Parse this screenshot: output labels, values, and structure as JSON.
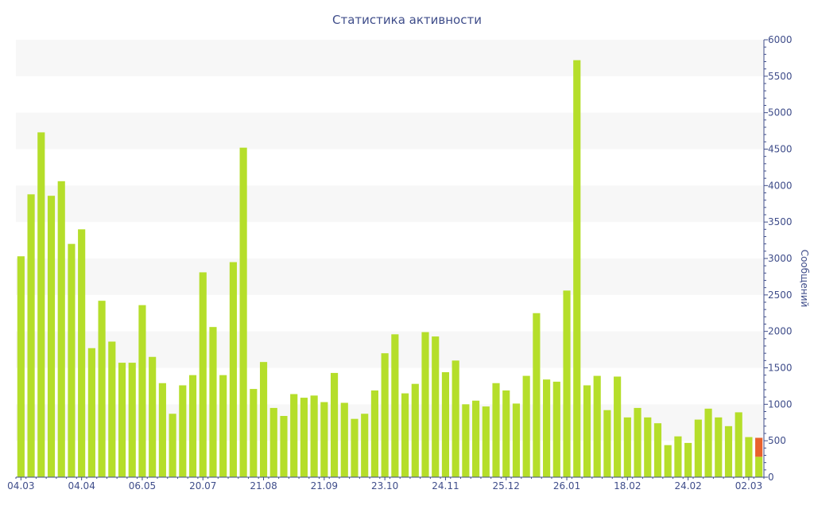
{
  "chart_data": {
    "type": "bar",
    "title": "Статистика активности",
    "ylabel": "Сообщений",
    "xlabel": "",
    "ylim": [
      0,
      6000
    ],
    "y_ticks": [
      0,
      500,
      1000,
      1500,
      2000,
      2500,
      3000,
      3500,
      4000,
      4500,
      5000,
      5500,
      6000
    ],
    "y_axis_position": "right",
    "grid": "alternating horizontal bands",
    "x_tick_labels": [
      {
        "label": "04.03",
        "index": 0
      },
      {
        "label": "04.04",
        "index": 6
      },
      {
        "label": "06.05",
        "index": 12
      },
      {
        "label": "20.07",
        "index": 18
      },
      {
        "label": "21.08",
        "index": 24
      },
      {
        "label": "21.09",
        "index": 30
      },
      {
        "label": "23.10",
        "index": 36
      },
      {
        "label": "24.11",
        "index": 42
      },
      {
        "label": "25.12",
        "index": 48
      },
      {
        "label": "26.01",
        "index": 54
      },
      {
        "label": "18.02",
        "index": 60
      },
      {
        "label": "24.02",
        "index": 66
      },
      {
        "label": "02.03",
        "index": 72
      }
    ],
    "series": [
      {
        "color": "#b5de2a",
        "values": [
          3030,
          3880,
          4730,
          3860,
          4060,
          3200,
          3400,
          1770,
          2420,
          1860,
          1570,
          1570,
          2360,
          1650,
          1290,
          870,
          1260,
          1400,
          2810,
          2060,
          1400,
          2950,
          4520,
          1210,
          1580,
          950,
          840,
          1140,
          1090,
          1120,
          1030,
          1430,
          1020,
          800,
          870,
          1190,
          1700,
          1960,
          1150,
          1280,
          1990,
          1930,
          1440,
          1600,
          1000,
          1050,
          970,
          1290,
          1190,
          1010,
          1390,
          2250,
          1340,
          1310,
          2560,
          5720,
          1260,
          1390,
          920,
          1380,
          820,
          950,
          820,
          740,
          440,
          560,
          470,
          790,
          940,
          820,
          700,
          890,
          550,
          280
        ]
      },
      {
        "color": "#e8612c",
        "values": [
          0,
          0,
          0,
          0,
          0,
          0,
          0,
          0,
          0,
          0,
          0,
          0,
          0,
          0,
          0,
          0,
          0,
          0,
          0,
          0,
          0,
          0,
          0,
          0,
          0,
          0,
          0,
          0,
          0,
          0,
          0,
          0,
          0,
          0,
          0,
          0,
          0,
          0,
          0,
          0,
          0,
          0,
          0,
          0,
          0,
          0,
          0,
          0,
          0,
          0,
          0,
          0,
          0,
          0,
          0,
          0,
          0,
          0,
          0,
          0,
          0,
          0,
          0,
          0,
          0,
          0,
          0,
          0,
          0,
          0,
          0,
          0,
          0,
          260
        ]
      }
    ]
  }
}
